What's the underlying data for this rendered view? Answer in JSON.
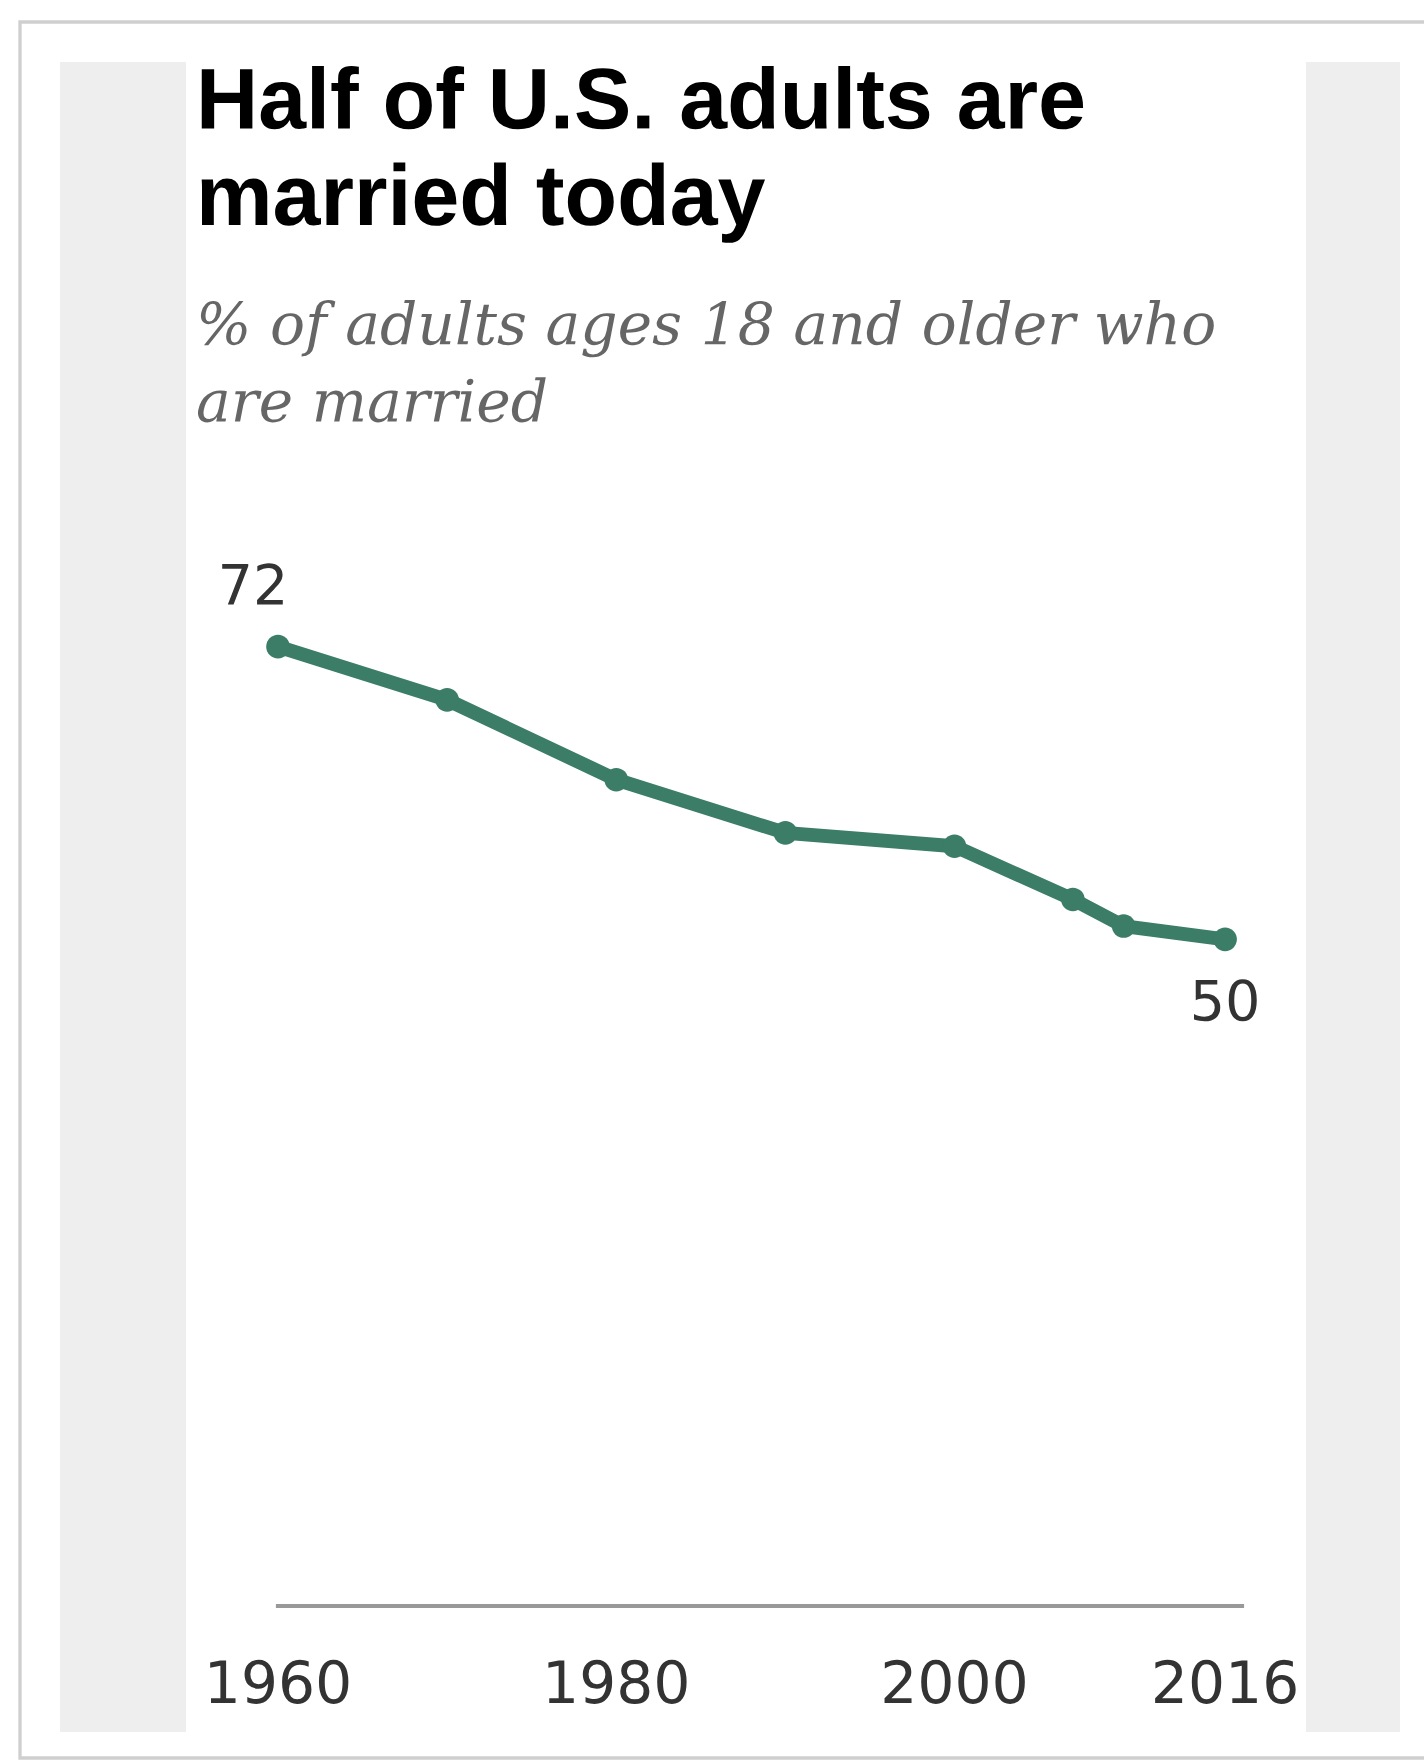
{
  "chart_data": {
    "type": "line",
    "title": "Half of U.S. adults are married today",
    "subtitle": "% of adults ages 18 and older who are married",
    "x": [
      1960,
      1970,
      1980,
      1990,
      2000,
      2007,
      2010,
      2016
    ],
    "series": [
      {
        "color": "#3b7d67",
        "values": [
          72,
          68,
          62,
          58,
          57,
          53,
          51,
          50
        ],
        "value_labels": [
          "72",
          null,
          null,
          null,
          null,
          null,
          null,
          "50"
        ]
      }
    ],
    "xlim": [
      1960,
      2017
    ],
    "xticks": [
      1960,
      1980,
      2000,
      2016
    ],
    "tick_labels": "x",
    "marker": "circle",
    "line_style": "solid"
  }
}
